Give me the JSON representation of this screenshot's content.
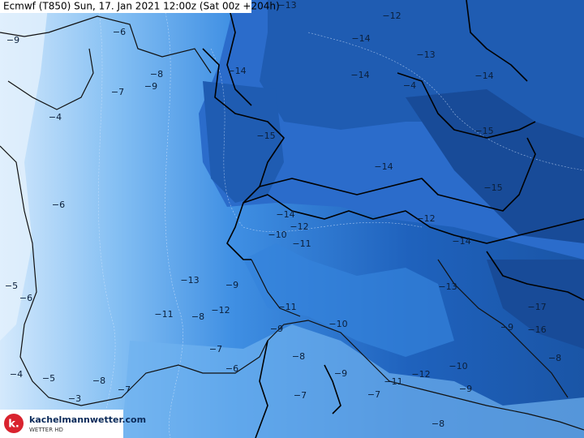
{
  "header": {
    "title": "Ecmwf (T850) Sun, 17. Jan 2021 12:00z (Sat 00z +204h)"
  },
  "logo": {
    "mark": "k.",
    "name": "kachelmannwetter.com",
    "subtitle": "WETTER HD"
  },
  "contour_labels": [
    "−13",
    "−12",
    "−6",
    "−9",
    "−14",
    "−13",
    "−8",
    "−14",
    "−14",
    "−14",
    "−7",
    "−9",
    "−4",
    "−4",
    "−15",
    "−15",
    "−6",
    "−14",
    "−15",
    "−14",
    "−12",
    "−12",
    "−10",
    "−11",
    "−14",
    "−13",
    "−9",
    "−13",
    "−5",
    "−6",
    "−11",
    "−8",
    "−12",
    "−11",
    "−17",
    "−10",
    "−9",
    "−9",
    "−16",
    "−7",
    "−8",
    "−10",
    "−8",
    "−6",
    "−9",
    "−12",
    "−5",
    "−4",
    "−8",
    "−7",
    "−11",
    "−9",
    "−7",
    "−7",
    "−3",
    "−8"
  ]
}
